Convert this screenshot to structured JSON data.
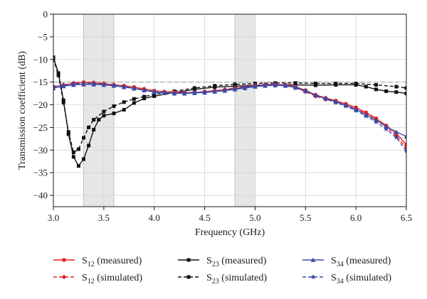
{
  "chart_data": {
    "type": "line",
    "xlabel": "Frequency (GHz)",
    "ylabel": "Transmission coefficient (dB)",
    "xlim": [
      3.0,
      6.5
    ],
    "ylim": [
      -42.5,
      0
    ],
    "xticks": [
      3.0,
      3.5,
      4.0,
      4.5,
      5.0,
      5.5,
      6.0,
      6.5
    ],
    "yticks": [
      0,
      -5,
      -10,
      -15,
      -20,
      -25,
      -30,
      -35,
      -40
    ],
    "grid": true,
    "legend_position": "bottom",
    "shaded_bands": [
      {
        "x0": 3.3,
        "x1": 3.6
      },
      {
        "x0": 4.8,
        "x1": 5.0
      }
    ],
    "reference_line": {
      "y": -15
    },
    "series": [
      {
        "name": "S12 (measured)",
        "label_main": "S",
        "label_sub": "12",
        "label_suffix": " (measured)",
        "color": "#e8231f",
        "dash": "solid",
        "marker": "circle",
        "x": [
          3.0,
          3.1,
          3.2,
          3.3,
          3.4,
          3.5,
          3.6,
          3.7,
          3.8,
          3.9,
          4.0,
          4.1,
          4.2,
          4.3,
          4.4,
          4.5,
          4.6,
          4.7,
          4.8,
          4.9,
          5.0,
          5.1,
          5.2,
          5.3,
          5.4,
          5.5,
          5.6,
          5.7,
          5.8,
          5.9,
          6.0,
          6.1,
          6.2,
          6.3,
          6.4,
          6.5
        ],
        "y": [
          -16.0,
          -15.7,
          -15.3,
          -15.1,
          -15.2,
          -15.4,
          -15.6,
          -15.8,
          -16.1,
          -16.5,
          -16.9,
          -17.1,
          -17.2,
          -17.3,
          -17.3,
          -17.1,
          -16.9,
          -16.7,
          -16.4,
          -16.1,
          -15.8,
          -15.6,
          -15.5,
          -15.6,
          -16.0,
          -16.8,
          -17.8,
          -18.5,
          -19.1,
          -19.8,
          -20.6,
          -21.7,
          -23.0,
          -24.6,
          -26.3,
          -28.8
        ]
      },
      {
        "name": "S12 (simulated)",
        "label_main": "S",
        "label_sub": "12",
        "label_suffix": " (simulated)",
        "color": "#e8231f",
        "dash": "dashed",
        "marker": "diamond",
        "x": [
          3.0,
          3.1,
          3.2,
          3.3,
          3.4,
          3.5,
          3.6,
          3.7,
          3.8,
          3.9,
          4.0,
          4.1,
          4.2,
          4.3,
          4.4,
          4.5,
          4.6,
          4.7,
          4.8,
          4.9,
          5.0,
          5.1,
          5.2,
          5.3,
          5.4,
          5.5,
          5.6,
          5.7,
          5.8,
          5.9,
          6.0,
          6.1,
          6.2,
          6.3,
          6.4,
          6.5
        ],
        "y": [
          -16.1,
          -15.6,
          -15.2,
          -15.0,
          -15.1,
          -15.3,
          -15.6,
          -15.9,
          -16.3,
          -16.7,
          -17.1,
          -17.3,
          -17.4,
          -17.4,
          -17.3,
          -17.1,
          -16.9,
          -16.6,
          -16.3,
          -16.0,
          -15.7,
          -15.5,
          -15.5,
          -15.7,
          -16.2,
          -17.1,
          -18.1,
          -18.8,
          -19.4,
          -20.1,
          -20.9,
          -22.0,
          -23.3,
          -24.9,
          -26.8,
          -29.6
        ]
      },
      {
        "name": "S23 (measured)",
        "label_main": "S",
        "label_sub": "23",
        "label_suffix": " (measured)",
        "color": "#111111",
        "dash": "solid",
        "marker": "square",
        "x": [
          3.0,
          3.05,
          3.1,
          3.15,
          3.2,
          3.25,
          3.3,
          3.35,
          3.4,
          3.45,
          3.5,
          3.6,
          3.7,
          3.8,
          3.9,
          4.0,
          4.2,
          4.4,
          4.6,
          4.8,
          5.0,
          5.2,
          5.4,
          5.6,
          5.8,
          6.0,
          6.1,
          6.2,
          6.3,
          6.4,
          6.5
        ],
        "y": [
          -9.5,
          -13.0,
          -19.0,
          -26.5,
          -31.5,
          -33.5,
          -32.0,
          -29.0,
          -25.5,
          -23.3,
          -22.4,
          -21.9,
          -21.1,
          -19.6,
          -18.6,
          -18.1,
          -17.3,
          -16.6,
          -16.1,
          -15.9,
          -15.7,
          -15.6,
          -15.6,
          -15.7,
          -15.6,
          -15.6,
          -16.0,
          -16.6,
          -17.0,
          -17.2,
          -17.5
        ]
      },
      {
        "name": "S23 (simulated)",
        "label_main": "S",
        "label_sub": "23",
        "label_suffix": " (simulated)",
        "color": "#111111",
        "dash": "dashed",
        "marker": "square",
        "x": [
          3.0,
          3.05,
          3.1,
          3.15,
          3.2,
          3.25,
          3.3,
          3.35,
          3.4,
          3.5,
          3.6,
          3.7,
          3.8,
          3.9,
          4.0,
          4.2,
          4.4,
          4.6,
          4.8,
          5.0,
          5.2,
          5.4,
          5.6,
          5.8,
          6.0,
          6.2,
          6.4,
          6.5
        ],
        "y": [
          -9.8,
          -13.5,
          -19.5,
          -26.0,
          -30.5,
          -29.8,
          -27.3,
          -25.0,
          -23.3,
          -21.5,
          -20.3,
          -19.4,
          -18.7,
          -18.2,
          -17.7,
          -17.0,
          -16.3,
          -15.8,
          -15.5,
          -15.3,
          -15.2,
          -15.2,
          -15.3,
          -15.3,
          -15.3,
          -15.6,
          -16.0,
          -16.3
        ]
      },
      {
        "name": "S34 (measured)",
        "label_main": "S",
        "label_sub": "34",
        "label_suffix": " (measured)",
        "color": "#3b4aa8",
        "dash": "solid",
        "marker": "triangle",
        "x": [
          3.0,
          3.1,
          3.2,
          3.3,
          3.4,
          3.5,
          3.6,
          3.7,
          3.8,
          3.9,
          4.0,
          4.1,
          4.2,
          4.3,
          4.4,
          4.5,
          4.6,
          4.7,
          4.8,
          4.9,
          5.0,
          5.1,
          5.2,
          5.3,
          5.4,
          5.5,
          5.6,
          5.7,
          5.8,
          5.9,
          6.0,
          6.1,
          6.2,
          6.3,
          6.4,
          6.5
        ],
        "y": [
          -16.3,
          -15.9,
          -15.6,
          -15.5,
          -15.5,
          -15.6,
          -15.8,
          -16.1,
          -16.4,
          -16.8,
          -17.2,
          -17.4,
          -17.5,
          -17.5,
          -17.4,
          -17.3,
          -17.1,
          -16.9,
          -16.6,
          -16.3,
          -16.0,
          -15.8,
          -15.7,
          -15.8,
          -16.2,
          -17.0,
          -17.9,
          -18.6,
          -19.3,
          -20.1,
          -21.0,
          -22.2,
          -23.4,
          -24.8,
          -26.0,
          -27.0
        ]
      },
      {
        "name": "S34 (simulated)",
        "label_main": "S",
        "label_sub": "34",
        "label_suffix": " (simulated)",
        "color": "#3b4aa8",
        "dash": "dashed",
        "marker": "star",
        "x": [
          3.0,
          3.1,
          3.2,
          3.3,
          3.4,
          3.5,
          3.6,
          3.7,
          3.8,
          3.9,
          4.0,
          4.1,
          4.2,
          4.3,
          4.4,
          4.5,
          4.6,
          4.7,
          4.8,
          4.9,
          5.0,
          5.1,
          5.2,
          5.3,
          5.4,
          5.5,
          5.6,
          5.7,
          5.8,
          5.9,
          6.0,
          6.1,
          6.2,
          6.3,
          6.4,
          6.5
        ],
        "y": [
          -16.0,
          -15.7,
          -15.4,
          -15.3,
          -15.3,
          -15.5,
          -15.7,
          -16.0,
          -16.4,
          -16.8,
          -17.1,
          -17.3,
          -17.4,
          -17.4,
          -17.3,
          -17.2,
          -17.0,
          -16.7,
          -16.4,
          -16.1,
          -15.8,
          -15.6,
          -15.5,
          -15.7,
          -16.1,
          -16.9,
          -17.9,
          -18.7,
          -19.5,
          -20.3,
          -21.3,
          -22.5,
          -23.8,
          -25.4,
          -27.2,
          -30.2
        ]
      }
    ]
  }
}
